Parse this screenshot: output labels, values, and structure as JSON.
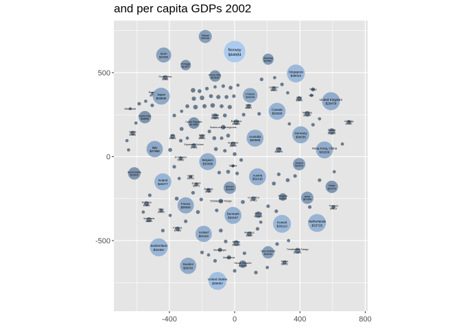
{
  "chart_data": {
    "type": "scatter",
    "title": "and per capita GDPs 2002",
    "xlabel": "",
    "ylabel": "",
    "xlim": [
      -740,
      815
    ],
    "ylim": [
      -920,
      810
    ],
    "x_ticks": [
      -400,
      0,
      400,
      800
    ],
    "x_tick_labels": [
      "-400",
      "0",
      "400",
      "800"
    ],
    "y_ticks": [
      -500,
      0,
      500
    ],
    "y_tick_labels": [
      "-500",
      "0",
      "500"
    ],
    "grid": true,
    "legend": "none",
    "colors": {
      "panel_background": "#e5e5e5",
      "gridline": "#ffffff",
      "bubble_low": "#56697f",
      "bubble_high": "#a4c8f0",
      "bubble_max_gdp": 44684,
      "bubble_min_gdp": 4000
    },
    "bubbles": [
      {
        "name": "Norway",
        "gdp": "$44684",
        "x": 0,
        "y": 625,
        "r": 66
      },
      {
        "name": "Taiwan",
        "gdp": "$23235",
        "x": -180,
        "y": 715,
        "r": 40
      },
      {
        "name": "Spain",
        "gdp": "$24835",
        "x": -435,
        "y": 605,
        "r": 46
      },
      {
        "name": "Slovenia",
        "gdp": "$20667",
        "x": 205,
        "y": 580,
        "r": 34
      },
      {
        "name": "Portugal",
        "gdp": "$19977",
        "x": -300,
        "y": 545,
        "r": 32
      },
      {
        "name": "Singapore",
        "gdp": "$36023",
        "x": 375,
        "y": 495,
        "r": 55
      },
      {
        "name": "Korea, Rep.",
        "gdp": "$19234",
        "x": -120,
        "y": 480,
        "r": 35
      },
      {
        "name": "South Africa",
        "gdp": "$7711",
        "x": -425,
        "y": 470,
        "r": 15
      },
      {
        "name": "Lebanon",
        "gdp": "$9314",
        "x": 240,
        "y": 405,
        "r": 14
      },
      {
        "name": "Reunion",
        "gdp": "$6190",
        "x": -500,
        "y": 375,
        "r": 12
      },
      {
        "name": "Japan",
        "gdp": "$28605",
        "x": -450,
        "y": 360,
        "r": 52
      },
      {
        "name": "Finland",
        "gdp": "$28205",
        "x": 95,
        "y": 365,
        "r": 45
      },
      {
        "name": "Libya",
        "gdp": "$9535",
        "x": 395,
        "y": 345,
        "r": 15
      },
      {
        "name": "Turkey",
        "gdp": "",
        "x": 480,
        "y": 400,
        "r": 12
      },
      {
        "name": "Haiti",
        "gdp": "",
        "x": 470,
        "y": 365,
        "r": 10
      },
      {
        "name": "United Kingdom",
        "gdp": "$29479",
        "x": 590,
        "y": 330,
        "r": 55
      },
      {
        "name": "Cuba",
        "gdp": "$8241",
        "x": 85,
        "y": 300,
        "r": 14
      },
      {
        "name": "West Bank",
        "gdp": "",
        "x": -640,
        "y": 285,
        "r": 9
      },
      {
        "name": "Puerto Rico",
        "gdp": "$18856",
        "x": -550,
        "y": 235,
        "r": 38
      },
      {
        "name": "Canada",
        "gdp": "$33329",
        "x": 260,
        "y": 270,
        "r": 52
      },
      {
        "name": "Malaysia",
        "gdp": "$10207",
        "x": 445,
        "y": 255,
        "r": 17
      },
      {
        "name": "Croatia",
        "gdp": "$11628",
        "x": -120,
        "y": 240,
        "r": 18
      },
      {
        "name": "Czech Republic",
        "gdp": "$17596",
        "x": -250,
        "y": 200,
        "r": 35
      },
      {
        "name": "Uruguay",
        "gdp": "$7727",
        "x": 700,
        "y": 205,
        "r": 14
      },
      {
        "name": "Botswana",
        "gdp": "$11004",
        "x": 10,
        "y": 205,
        "r": 17
      },
      {
        "name": "Poland",
        "gdp": "$12002",
        "x": 595,
        "y": 150,
        "r": 20
      },
      {
        "name": "Serbia",
        "gdp": "$7290",
        "x": -625,
        "y": 140,
        "r": 14
      },
      {
        "name": "Iran",
        "gdp": "$9241",
        "x": -380,
        "y": 120,
        "r": 15
      },
      {
        "name": "Germany",
        "gdp": "$30036",
        "x": 405,
        "y": 130,
        "r": 52
      },
      {
        "name": "Brazil",
        "gdp": "$8131",
        "x": -200,
        "y": 120,
        "r": 14
      },
      {
        "name": "Bosnia and Herzegovina",
        "gdp": "",
        "x": -70,
        "y": 175,
        "r": 14
      },
      {
        "name": "Argentina",
        "gdp": "$8798",
        "x": -10,
        "y": 75,
        "r": 15
      },
      {
        "name": "Australia",
        "gdp": "$30688",
        "x": 125,
        "y": 110,
        "r": 52
      },
      {
        "name": "Chile",
        "gdp": "$10779",
        "x": 270,
        "y": 40,
        "r": 17
      },
      {
        "name": "Equatorial Guinea",
        "gdp": "$7703",
        "x": -250,
        "y": 65,
        "r": 15
      },
      {
        "name": "Italy",
        "gdp": "$27968",
        "x": -490,
        "y": 45,
        "r": 50
      },
      {
        "name": "Hong Kong, China",
        "gdp": "$30209",
        "x": 550,
        "y": 40,
        "r": 52
      },
      {
        "name": "El Salvador",
        "gdp": "$5352",
        "x": -330,
        "y": -10,
        "r": 12
      },
      {
        "name": "Belgium",
        "gdp": "$30486",
        "x": -165,
        "y": -30,
        "r": 52
      },
      {
        "name": "Greece",
        "gdp": "$22514",
        "x": 395,
        "y": -45,
        "r": 38
      },
      {
        "name": "Saudi Arabia",
        "gdp": "$19015",
        "x": -615,
        "y": -100,
        "r": 38
      },
      {
        "name": "Nigeria",
        "gdp": "",
        "x": -10,
        "y": -55,
        "r": 10
      },
      {
        "name": "Ireland",
        "gdp": "$34077",
        "x": -440,
        "y": -150,
        "r": 52
      },
      {
        "name": "Austria",
        "gdp": "$32418",
        "x": 140,
        "y": -120,
        "r": 52
      },
      {
        "name": "Egypt",
        "gdp": "$4754",
        "x": -270,
        "y": -120,
        "r": 11
      },
      {
        "name": "Ecuador",
        "gdp": "$5773",
        "x": -235,
        "y": -165,
        "r": 12
      },
      {
        "name": "Bahrain",
        "gdp": "$23404",
        "x": -30,
        "y": -185,
        "r": 38
      },
      {
        "name": "Oman",
        "gdp": "$19775",
        "x": 595,
        "y": -180,
        "r": 38
      },
      {
        "name": "Bulgaria",
        "gdp": "$7697",
        "x": -160,
        "y": -200,
        "r": 14
      },
      {
        "name": "Israel",
        "gdp": "$21906",
        "x": 445,
        "y": -245,
        "r": 38
      },
      {
        "name": "Hungary",
        "gdp": "$14844",
        "x": 295,
        "y": -240,
        "r": 23
      },
      {
        "name": "Costa Rica",
        "gdp": "$7723",
        "x": 115,
        "y": -250,
        "r": 14
      },
      {
        "name": "Trinidad and Tobago",
        "gdp": "",
        "x": -85,
        "y": -265,
        "r": 14
      },
      {
        "name": "Romania",
        "gdp": "$7885",
        "x": -540,
        "y": -280,
        "r": 15
      },
      {
        "name": "France",
        "gdp": "$28926",
        "x": -300,
        "y": -290,
        "r": 50
      },
      {
        "name": "Peru",
        "gdp": "$5909",
        "x": -450,
        "y": -320,
        "r": 12
      },
      {
        "name": "Thailand",
        "gdp": "$6813",
        "x": 605,
        "y": -300,
        "r": 12
      },
      {
        "name": "Gabon",
        "gdp": "$12522",
        "x": 145,
        "y": -345,
        "r": 20
      },
      {
        "name": "Venezuela",
        "gdp": "$8605",
        "x": -525,
        "y": -375,
        "r": 15
      },
      {
        "name": "Denmark",
        "gdp": "$32167",
        "x": -10,
        "y": -350,
        "r": 52
      },
      {
        "name": "Kuwait",
        "gdp": "$35110",
        "x": 290,
        "y": -400,
        "r": 55
      },
      {
        "name": "Netherlands",
        "gdp": "$33725",
        "x": 505,
        "y": -395,
        "r": 55
      },
      {
        "name": "Panama",
        "gdp": "$7356",
        "x": -350,
        "y": -430,
        "r": 14
      },
      {
        "name": "Mauritius",
        "gdp": "$9022",
        "x": 90,
        "y": -460,
        "r": 15
      },
      {
        "name": "Iceland",
        "gdp": "$31163",
        "x": -190,
        "y": -460,
        "r": 50
      },
      {
        "name": "Switzerland",
        "gdp": "$34481",
        "x": -465,
        "y": -540,
        "r": 55
      },
      {
        "name": "Mexico",
        "gdp": "$10742",
        "x": 10,
        "y": -515,
        "r": 18
      },
      {
        "name": "Trinidad and Tobago",
        "gdp": "$11461",
        "x": 385,
        "y": -560,
        "r": 18
      },
      {
        "name": "New Zealand",
        "gdp": "$23190",
        "x": 205,
        "y": -570,
        "r": 38
      },
      {
        "name": "Montenegro",
        "gdp": "",
        "x": -90,
        "y": -555,
        "r": 13
      },
      {
        "name": "Macedonia",
        "gdp": "",
        "x": -35,
        "y": -600,
        "r": 13
      },
      {
        "name": "Tunisia",
        "gdp": "$6726",
        "x": 305,
        "y": -630,
        "r": 13
      },
      {
        "name": "Slovak Republic",
        "gdp": "$13639",
        "x": 50,
        "y": -640,
        "r": 23
      },
      {
        "name": "Sweden",
        "gdp": "$29342",
        "x": -285,
        "y": -650,
        "r": 50
      },
      {
        "name": "United States",
        "gdp": "$39097",
        "x": -105,
        "y": -740,
        "r": 55
      }
    ],
    "filler_bubbles": [
      {
        "x": -255,
        "y": 395,
        "r": 14
      },
      {
        "x": -215,
        "y": 390,
        "r": 12
      },
      {
        "x": -170,
        "y": 405,
        "r": 11
      },
      {
        "x": -120,
        "y": 415,
        "r": 10
      },
      {
        "x": -70,
        "y": 420,
        "r": 11
      },
      {
        "x": -25,
        "y": 410,
        "r": 12
      },
      {
        "x": 20,
        "y": 425,
        "r": 10
      },
      {
        "x": -250,
        "y": 345,
        "r": 13
      },
      {
        "x": -200,
        "y": 350,
        "r": 14
      },
      {
        "x": -145,
        "y": 360,
        "r": 12
      },
      {
        "x": -100,
        "y": 355,
        "r": 13
      },
      {
        "x": -50,
        "y": 355,
        "r": 12
      },
      {
        "x": -5,
        "y": 360,
        "r": 11
      },
      {
        "x": -290,
        "y": 300,
        "r": 12
      },
      {
        "x": -240,
        "y": 295,
        "r": 14
      },
      {
        "x": -185,
        "y": 300,
        "r": 13
      },
      {
        "x": -135,
        "y": 305,
        "r": 14
      },
      {
        "x": -80,
        "y": 300,
        "r": 12
      },
      {
        "x": -30,
        "y": 295,
        "r": 13
      },
      {
        "x": -370,
        "y": 245,
        "r": 11
      },
      {
        "x": -325,
        "y": 270,
        "r": 10
      },
      {
        "x": -60,
        "y": 245,
        "r": 12
      },
      {
        "x": 55,
        "y": 250,
        "r": 11
      },
      {
        "x": -585,
        "y": 315,
        "r": 11
      },
      {
        "x": -545,
        "y": 330,
        "r": 10
      },
      {
        "x": -505,
        "y": 305,
        "r": 11
      },
      {
        "x": -605,
        "y": 200,
        "r": 10
      },
      {
        "x": -325,
        "y": 165,
        "r": 12
      },
      {
        "x": -155,
        "y": 150,
        "r": 11
      },
      {
        "x": -125,
        "y": 110,
        "r": 12
      },
      {
        "x": -80,
        "y": 110,
        "r": 11
      },
      {
        "x": -40,
        "y": 125,
        "r": 12
      },
      {
        "x": -330,
        "y": 95,
        "r": 11
      },
      {
        "x": -290,
        "y": 110,
        "r": 10
      },
      {
        "x": -395,
        "y": 40,
        "r": 12
      },
      {
        "x": -115,
        "y": 45,
        "r": 12
      },
      {
        "x": -60,
        "y": 35,
        "r": 11
      },
      {
        "x": 0,
        "y": 15,
        "r": 12
      },
      {
        "x": 40,
        "y": -20,
        "r": 11
      },
      {
        "x": -660,
        "y": 95,
        "r": 10
      },
      {
        "x": -650,
        "y": 40,
        "r": 10
      },
      {
        "x": -370,
        "y": -60,
        "r": 11
      },
      {
        "x": -95,
        "y": -95,
        "r": 11
      },
      {
        "x": -40,
        "y": -90,
        "r": 12
      },
      {
        "x": 15,
        "y": -100,
        "r": 11
      },
      {
        "x": 240,
        "y": -160,
        "r": 12
      },
      {
        "x": 270,
        "y": -105,
        "r": 11
      },
      {
        "x": 325,
        "y": -140,
        "r": 12
      },
      {
        "x": 370,
        "y": -115,
        "r": 11
      },
      {
        "x": -355,
        "y": -250,
        "r": 12
      },
      {
        "x": -205,
        "y": -255,
        "r": 11
      },
      {
        "x": -225,
        "y": -330,
        "r": 12
      },
      {
        "x": -110,
        "y": -320,
        "r": 11
      },
      {
        "x": 50,
        "y": -270,
        "r": 12
      },
      {
        "x": 205,
        "y": -295,
        "r": 11
      },
      {
        "x": 255,
        "y": -325,
        "r": 11
      },
      {
        "x": -395,
        "y": -350,
        "r": 10
      },
      {
        "x": -440,
        "y": -440,
        "r": 11
      },
      {
        "x": -300,
        "y": -385,
        "r": 11
      },
      {
        "x": -85,
        "y": -440,
        "r": 12
      },
      {
        "x": -55,
        "y": -505,
        "r": 11
      },
      {
        "x": 140,
        "y": -430,
        "r": 11
      },
      {
        "x": -200,
        "y": -570,
        "r": 11
      },
      {
        "x": -160,
        "y": -585,
        "r": 10
      },
      {
        "x": -120,
        "y": -620,
        "r": 11
      },
      {
        "x": 0,
        "y": -680,
        "r": 11
      },
      {
        "x": 130,
        "y": -690,
        "r": 11
      },
      {
        "x": 200,
        "y": -660,
        "r": 10
      },
      {
        "x": 260,
        "y": -520,
        "r": 11
      },
      {
        "x": 330,
        "y": -500,
        "r": 10
      },
      {
        "x": 160,
        "y": -390,
        "r": 10
      },
      {
        "x": 60,
        "y": -575,
        "r": 11
      },
      {
        "x": -520,
        "y": -230,
        "r": 11
      },
      {
        "x": -560,
        "y": -330,
        "r": 10
      },
      {
        "x": 660,
        "y": 75,
        "r": 10
      },
      {
        "x": 610,
        "y": -90,
        "r": 10
      },
      {
        "x": 520,
        "y": -140,
        "r": 11
      },
      {
        "x": 480,
        "y": 190,
        "r": 11
      },
      {
        "x": 520,
        "y": 225,
        "r": 10
      },
      {
        "x": 460,
        "y": -300,
        "r": 11
      },
      {
        "x": 165,
        "y": 460,
        "r": 11
      },
      {
        "x": 245,
        "y": 470,
        "r": 10
      },
      {
        "x": 290,
        "y": 430,
        "r": 11
      },
      {
        "x": 325,
        "y": 380,
        "r": 10
      },
      {
        "x": 150,
        "y": 255,
        "r": 11
      },
      {
        "x": 335,
        "y": 195,
        "r": 10
      },
      {
        "x": -340,
        "y": -130,
        "r": 10
      },
      {
        "x": -255,
        "y": -215,
        "r": 11
      }
    ]
  }
}
